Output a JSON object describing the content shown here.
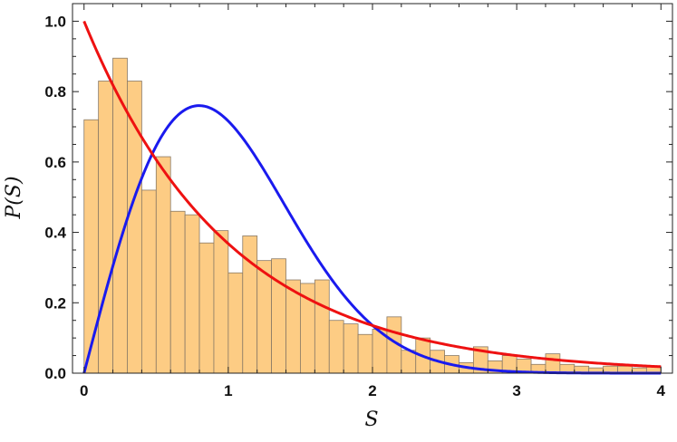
{
  "chart_data": {
    "type": "bar",
    "title": "",
    "xlabel": "S",
    "ylabel": "P(S)",
    "xlim": [
      -0.08,
      4.08
    ],
    "ylim": [
      0,
      1.05
    ],
    "xticks": [
      0,
      1,
      2,
      3,
      4
    ],
    "yticks": [
      0.0,
      0.2,
      0.4,
      0.6,
      0.8,
      1.0
    ],
    "xtick_labels": [
      "0",
      "1",
      "2",
      "3",
      "4"
    ],
    "ytick_labels": [
      "0.0",
      "0.2",
      "0.4",
      "0.6",
      "0.8",
      "1.0"
    ],
    "histogram": {
      "bin_width": 0.1,
      "bin_start": 0,
      "values": [
        0.72,
        0.83,
        0.895,
        0.83,
        0.52,
        0.615,
        0.46,
        0.45,
        0.37,
        0.405,
        0.285,
        0.39,
        0.32,
        0.325,
        0.265,
        0.255,
        0.265,
        0.15,
        0.14,
        0.11,
        0.125,
        0.16,
        0.065,
        0.1,
        0.065,
        0.05,
        0.03,
        0.075,
        0.035,
        0.05,
        0.04,
        0.025,
        0.055,
        0.025,
        0.02,
        0.015,
        0.02,
        0.02,
        0.015,
        0.02
      ],
      "fill": "#fdcc84",
      "stroke": "#8a7a66"
    },
    "series": [
      {
        "type": "line",
        "formula": "exp(-s)",
        "color": "#ee1111",
        "x": [
          0,
          0.25,
          0.5,
          0.75,
          1.0,
          1.25,
          1.5,
          1.75,
          2.0,
          2.25,
          2.5,
          2.75,
          3.0,
          3.25,
          3.5,
          3.75,
          4.0
        ],
        "y": [
          1.0,
          0.779,
          0.607,
          0.472,
          0.368,
          0.287,
          0.223,
          0.174,
          0.135,
          0.105,
          0.082,
          0.064,
          0.05,
          0.039,
          0.03,
          0.024,
          0.018
        ]
      },
      {
        "type": "line",
        "formula": "(pi/2) s exp(-pi s^2 / 4)",
        "color": "#1a1aee",
        "x": [
          0,
          0.25,
          0.5,
          0.75,
          0.8,
          1.0,
          1.25,
          1.5,
          1.75,
          2.0,
          2.25,
          2.5,
          2.75,
          3.0,
          3.5,
          4.0
        ],
        "y": [
          0,
          0.374,
          0.643,
          0.755,
          0.76,
          0.716,
          0.578,
          0.403,
          0.247,
          0.136,
          0.067,
          0.029,
          0.011,
          0.004,
          0.0003,
          0.0
        ]
      }
    ],
    "grid": false,
    "legend": "none"
  }
}
